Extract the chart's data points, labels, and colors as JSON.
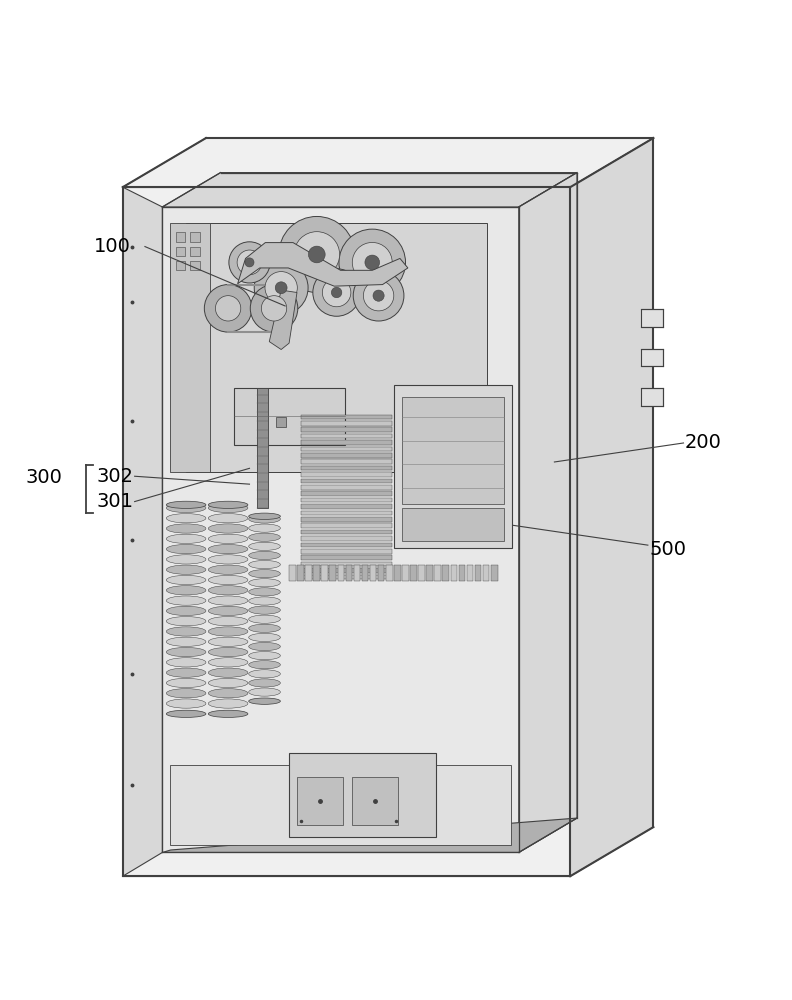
{
  "bg_color": "#ffffff",
  "line_color": "#404040",
  "light_fill": "#f0f0f0",
  "mid_fill": "#d8d8d8",
  "dark_fill": "#b0b0b0",
  "darker_fill": "#888888",
  "label_fontsize": 14
}
